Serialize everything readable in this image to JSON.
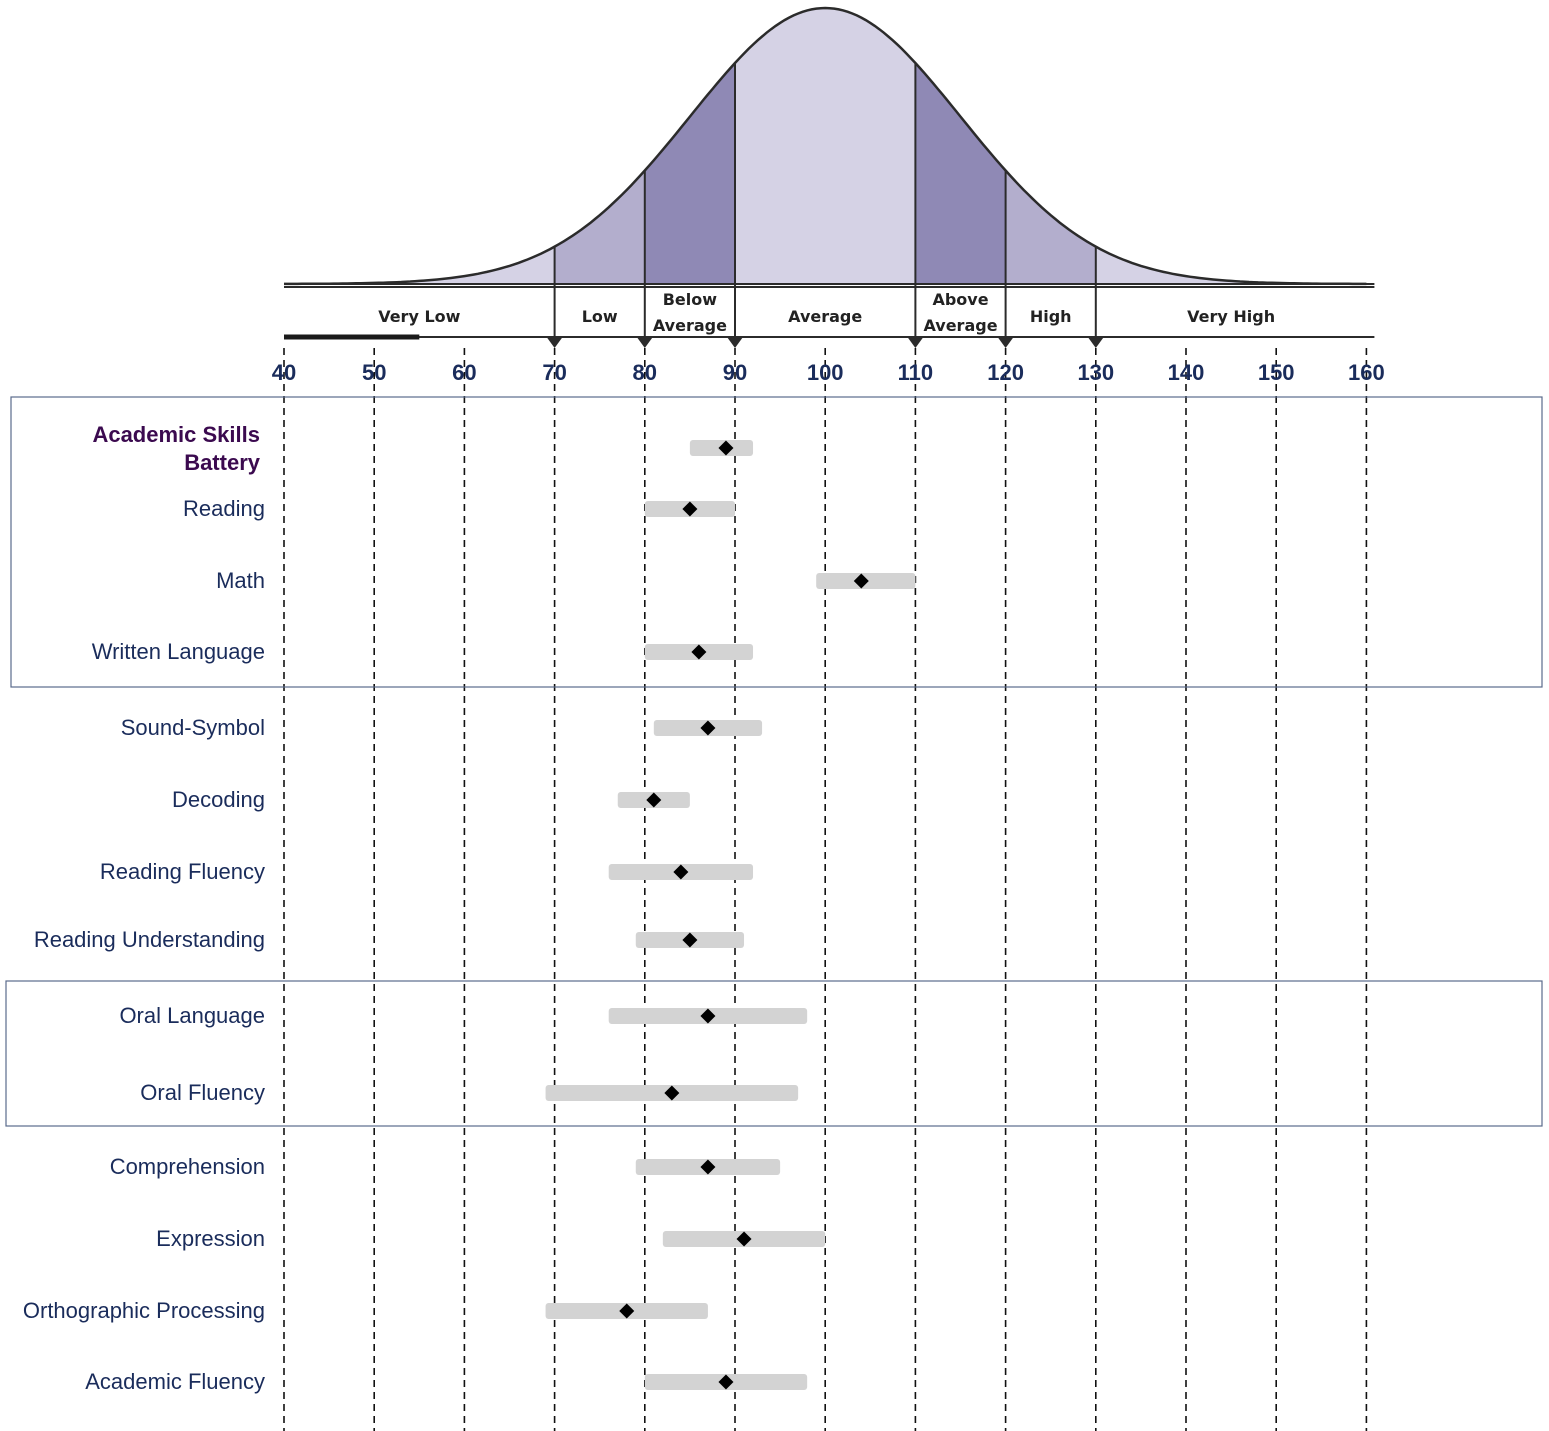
{
  "chart_data": {
    "type": "scatter",
    "title": "",
    "xlabel": "",
    "ylabel": "",
    "xlim": [
      40,
      160
    ],
    "x_ticks": [
      40,
      50,
      60,
      70,
      80,
      90,
      100,
      110,
      120,
      130,
      140,
      150,
      160
    ],
    "tick_labels": [
      "40",
      "50",
      "60",
      "70",
      "80",
      "90",
      "100",
      "110",
      "120",
      "130",
      "140",
      "150",
      "160"
    ],
    "grid": "dashed vertical lines at each tick",
    "distribution": {
      "type": "normal curve",
      "mean": 100,
      "sd": 15,
      "bands": [
        {
          "label_lines": [
            "Very Low"
          ],
          "from": 40,
          "to": 70,
          "color": "#d5d2e5"
        },
        {
          "label_lines": [
            "Low"
          ],
          "from": 70,
          "to": 80,
          "color": "#b3aecd"
        },
        {
          "label_lines": [
            "Below",
            "Average"
          ],
          "from": 80,
          "to": 90,
          "color": "#8f89b5"
        },
        {
          "label_lines": [
            "Average"
          ],
          "from": 90,
          "to": 110,
          "color": "#d5d2e5"
        },
        {
          "label_lines": [
            "Above",
            "Average"
          ],
          "from": 110,
          "to": 120,
          "color": "#8f89b5"
        },
        {
          "label_lines": [
            "High"
          ],
          "from": 120,
          "to": 130,
          "color": "#b3aecd"
        },
        {
          "label_lines": [
            "Very High"
          ],
          "from": 130,
          "to": 160,
          "color": "#d5d2e5"
        }
      ],
      "band_boundaries": [
        70,
        80,
        90,
        110,
        120,
        130
      ]
    },
    "groups": [
      {
        "rows": [
          0,
          1,
          2,
          3
        ]
      },
      {
        "rows": [
          8,
          9
        ]
      }
    ],
    "series": [
      {
        "label": "Academic Skills Battery",
        "bold": true,
        "score": 89,
        "ci": [
          85,
          92
        ]
      },
      {
        "label": "Reading",
        "score": 85,
        "ci": [
          80,
          90
        ]
      },
      {
        "label": "Math",
        "score": 104,
        "ci": [
          99,
          110
        ]
      },
      {
        "label": "Written Language",
        "score": 86,
        "ci": [
          80,
          92
        ]
      },
      {
        "label": "Sound-Symbol",
        "score": 87,
        "ci": [
          81,
          93
        ]
      },
      {
        "label": "Decoding",
        "score": 81,
        "ci": [
          77,
          85
        ]
      },
      {
        "label": "Reading Fluency",
        "score": 84,
        "ci": [
          76,
          92
        ]
      },
      {
        "label": "Reading Understanding",
        "score": 85,
        "ci": [
          79,
          91
        ]
      },
      {
        "label": "Oral Language",
        "score": 87,
        "ci": [
          76,
          98
        ]
      },
      {
        "label": "Oral Fluency",
        "score": 83,
        "ci": [
          69,
          97
        ]
      },
      {
        "label": "Comprehension",
        "score": 87,
        "ci": [
          79,
          95
        ]
      },
      {
        "label": "Expression",
        "score": 91,
        "ci": [
          82,
          100
        ]
      },
      {
        "label": "Orthographic Processing",
        "score": 78,
        "ci": [
          69,
          87
        ]
      },
      {
        "label": "Academic Fluency",
        "score": 89,
        "ci": [
          80,
          98
        ]
      }
    ],
    "colors": {
      "ci_bar": "#d3d3d3",
      "marker": "#000000",
      "tick_text": "#1a2c5b",
      "row_text": "#1a2c5b",
      "bold_row_text": "#3b0a4f",
      "group_border": "#5a6b8c"
    }
  }
}
